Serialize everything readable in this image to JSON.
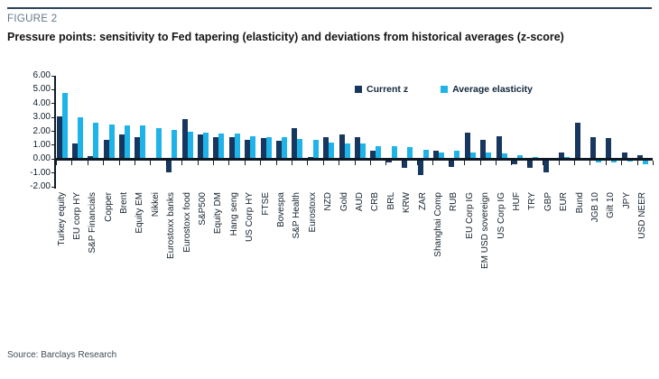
{
  "figure_label": "FIGURE 2",
  "title": "Pressure points: sensitivity to Fed tapering (elasticity) and deviations from historical averages (z-score)",
  "source": "Source: Barclays Research",
  "colors": {
    "current_z": "#17375e",
    "average_elasticity": "#1eb4e9",
    "axis": "#101c28",
    "figure_label": "#61788c"
  },
  "chart_data": {
    "type": "bar",
    "title": "Pressure points: sensitivity to Fed tapering (elasticity) and deviations from historical averages (z-score)",
    "xlabel": "",
    "ylabel": "",
    "ylim": [
      -2,
      6
    ],
    "ytick_step": 1,
    "yticks": [
      "6.00",
      "5.00",
      "4.00",
      "3.00",
      "2.00",
      "1.00",
      "0.00",
      "-1.00",
      "-2.00"
    ],
    "grid": false,
    "legend_position": "top-right",
    "categories": [
      "Turkey equity",
      "EU corp HY",
      "S&P Financials",
      "Copper",
      "Brent",
      "Equity EM",
      "Nikkei",
      "Eurostoxx banks",
      "Eurostoxx food",
      "S&P500",
      "Equity DM",
      "Hang seng",
      "US Corp HY",
      "FTSE",
      "Bovespa",
      "S&P Health",
      "Eurostoxx",
      "NZD",
      "Gold",
      "AUD",
      "CRB",
      "BRL",
      "KRW",
      "ZAR",
      "Shanghai Comp",
      "RUB",
      "EU Corp IG",
      "EM USD sovereign",
      "US Corp IG",
      "HUF",
      "TRY",
      "GBP",
      "EUR",
      "Bund",
      "JGB 10",
      "Gilt 10",
      "JPY",
      "USD NEER"
    ],
    "series": [
      {
        "name": "Current z",
        "color": "#17375e",
        "values": [
          3.05,
          1.15,
          0.2,
          1.4,
          1.75,
          1.55,
          0,
          -0.95,
          2.9,
          1.8,
          1.55,
          1.6,
          1.4,
          1.5,
          1.3,
          2.2,
          0.15,
          1.6,
          1.8,
          1.55,
          0.6,
          -0.25,
          -0.65,
          -1.15,
          0.6,
          -0.55,
          1.9,
          1.35,
          1.65,
          -0.35,
          -0.65,
          -0.95,
          0.45,
          2.6,
          1.55,
          1.5,
          0.45,
          0.3
        ]
      },
      {
        "name": "Average elasticity",
        "color": "#1eb4e9",
        "values": [
          4.75,
          3.0,
          2.6,
          2.5,
          2.45,
          2.4,
          2.25,
          2.1,
          2.0,
          1.9,
          1.85,
          1.85,
          1.65,
          1.55,
          1.6,
          1.45,
          1.35,
          1.2,
          1.1,
          1.1,
          0.95,
          0.95,
          0.85,
          0.65,
          0.5,
          0.6,
          0.5,
          0.45,
          0.4,
          0.3,
          0.15,
          0.1,
          0.15,
          -0.05,
          -0.25,
          -0.25,
          -0.2,
          -0.35
        ]
      }
    ]
  }
}
